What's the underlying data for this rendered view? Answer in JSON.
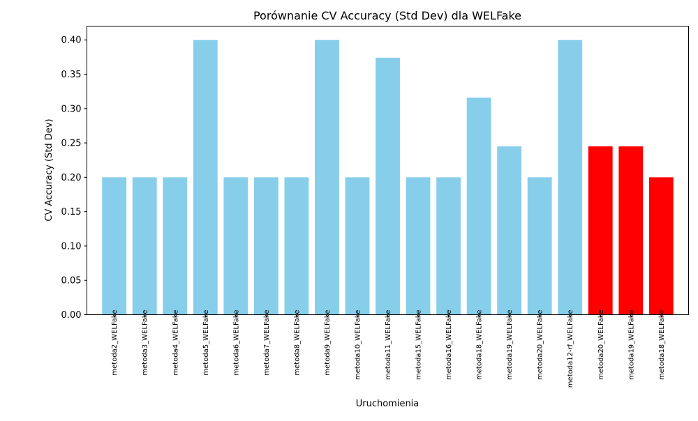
{
  "chart_data": {
    "type": "bar",
    "title": "Porównanie CV Accuracy (Std Dev) dla WELFake",
    "xlabel": "Uruchomienia",
    "ylabel": "CV Accuracy (Std Dev)",
    "ylim": [
      0,
      0.42
    ],
    "yticks": [
      "0.00",
      "0.05",
      "0.10",
      "0.15",
      "0.20",
      "0.25",
      "0.30",
      "0.35",
      "0.40"
    ],
    "grid": false,
    "legend": "none",
    "categories": [
      "metoda2_WELFake",
      "metoda3_WELFake",
      "metoda4_WELFake",
      "metoda5_WELFake",
      "metoda6_WELFake",
      "metoda7_WELFake",
      "metoda8_WELFake",
      "metoda9_WELFake",
      "metoda10_WELFake",
      "metoda11_WELFake",
      "metoda15_WELFake",
      "metoda16_WELFake",
      "metoda18_WELFake",
      "metoda19_WELFake",
      "metoda20_WELFake",
      "metoda12-rf_WELFake",
      "metoda20_WELFake",
      "metoda19_WELFake",
      "metoda18_WELFake"
    ],
    "values": [
      0.2,
      0.2,
      0.2,
      0.4,
      0.2,
      0.2,
      0.2,
      0.4,
      0.2,
      0.374,
      0.2,
      0.2,
      0.316,
      0.245,
      0.2,
      0.4,
      0.245,
      0.245,
      0.2
    ],
    "highlighted": [
      false,
      false,
      false,
      false,
      false,
      false,
      false,
      false,
      false,
      false,
      false,
      false,
      false,
      false,
      false,
      false,
      true,
      true,
      true
    ],
    "colors": {
      "default": "#87ceeb",
      "highlight": "#ff0000"
    }
  }
}
